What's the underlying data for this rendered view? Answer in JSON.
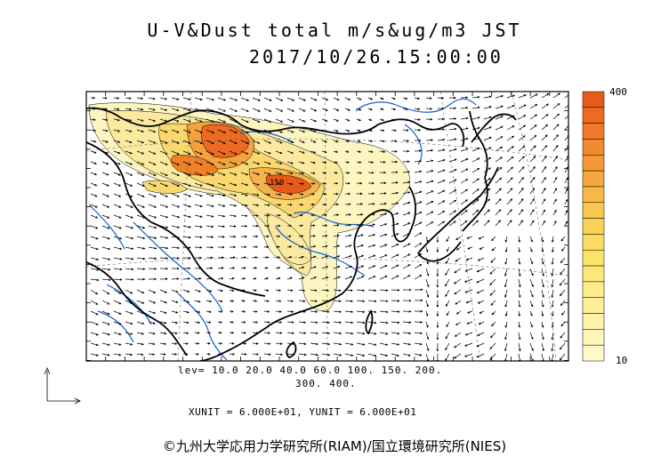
{
  "title_line1": "U-V&Dust total m/s&ug/m3 JST",
  "title_line2": "2017/10/26.15:00:00",
  "contour_levels_line1": "lev= 10.0 20.0 40.0 60.0 100. 150. 200.",
  "contour_levels_line2": "300. 400.",
  "contour_label": "150",
  "units": "XUNIT = 6.000E+01, YUNIT = 6.000E+01",
  "colorbar": {
    "max_label": "400",
    "min_label": "10",
    "colors": [
      "#e85a1a",
      "#ed6a20",
      "#f07a28",
      "#f28a30",
      "#f49838",
      "#f6a840",
      "#f8b848",
      "#f9c650",
      "#fad258",
      "#fbdc60",
      "#fce468",
      "#fce878",
      "#fdec88",
      "#fdf098",
      "#fef3a8",
      "#fef6b8",
      "#fefac8"
    ]
  },
  "credit": "©九州大学応用力学研究所(RIAM)/国立環境研究所(NIES)",
  "colors": {
    "coast": "#000000",
    "river": "#1060d0",
    "dust_low": "#fdf5c0",
    "dust_mid": "#f7d060",
    "dust_high": "#e8561a"
  }
}
